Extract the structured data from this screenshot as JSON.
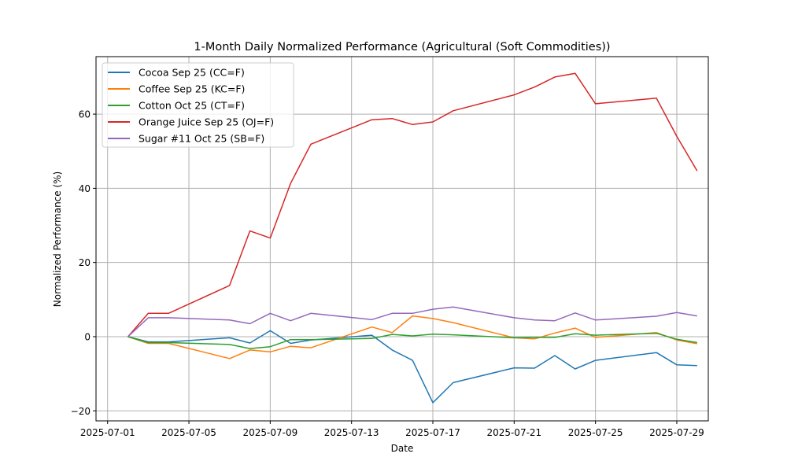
{
  "chart_data": {
    "type": "line",
    "title": "1-Month Daily Normalized Performance (Agricultural (Soft Commodities))",
    "xlabel": "Date",
    "ylabel": "Normalized Performance (%)",
    "grid": true,
    "legend_position": "top-left",
    "xlim": [
      "2025-06-30",
      "2025-07-31"
    ],
    "ylim": [
      -22.7,
      75.5
    ],
    "x_ticks": [
      "2025-07-01",
      "2025-07-05",
      "2025-07-09",
      "2025-07-13",
      "2025-07-17",
      "2025-07-21",
      "2025-07-25",
      "2025-07-29"
    ],
    "y_ticks": [
      -20,
      0,
      20,
      40,
      60
    ],
    "y_tick_labels": [
      "−20",
      "0",
      "20",
      "40",
      "60"
    ],
    "x": [
      "2025-07-02",
      "2025-07-03",
      "2025-07-04",
      "2025-07-07",
      "2025-07-08",
      "2025-07-09",
      "2025-07-10",
      "2025-07-11",
      "2025-07-14",
      "2025-07-15",
      "2025-07-16",
      "2025-07-17",
      "2025-07-18",
      "2025-07-21",
      "2025-07-22",
      "2025-07-23",
      "2025-07-24",
      "2025-07-25",
      "2025-07-28",
      "2025-07-29",
      "2025-07-30"
    ],
    "series": [
      {
        "name": "Cocoa Sep 25 (CC=F)",
        "color": "#1f77b4",
        "values": [
          0,
          -1.4,
          -1.4,
          -0.3,
          -1.7,
          1.6,
          -1.8,
          -0.9,
          0.4,
          -3.6,
          -6.4,
          -17.8,
          -12.4,
          -8.4,
          -8.5,
          -5.1,
          -8.7,
          -6.4,
          -4.3,
          -7.6,
          -7.8
        ]
      },
      {
        "name": "Coffee Sep 25 (KC=F)",
        "color": "#ff7f0e",
        "values": [
          0,
          -1.8,
          -1.8,
          -5.9,
          -3.6,
          -4.1,
          -2.6,
          -3.0,
          2.6,
          1.1,
          5.6,
          4.9,
          3.8,
          -0.3,
          -0.6,
          1.0,
          2.3,
          -0.2,
          1.1,
          -0.9,
          -1.9
        ]
      },
      {
        "name": "Cotton Oct 25 (CT=F)",
        "color": "#2ca02c",
        "values": [
          0,
          -1.6,
          -1.6,
          -2.1,
          -3.2,
          -2.7,
          -0.8,
          -0.8,
          -0.5,
          0.6,
          0.2,
          0.7,
          0.5,
          -0.3,
          -0.2,
          -0.2,
          0.8,
          0.4,
          0.9,
          -0.7,
          -1.6
        ]
      },
      {
        "name": "Orange Juice Sep 25 (OJ=F)",
        "color": "#d62728",
        "values": [
          0,
          6.3,
          6.3,
          13.8,
          28.5,
          26.6,
          41.3,
          51.9,
          58.5,
          58.8,
          57.2,
          57.9,
          60.9,
          65.2,
          67.3,
          70.0,
          71.0,
          62.8,
          64.3,
          54.0,
          44.7
        ]
      },
      {
        "name": "Sugar #11 Oct 25 (SB=F)",
        "color": "#9467bd",
        "values": [
          0,
          5.1,
          5.1,
          4.5,
          3.5,
          6.3,
          4.3,
          6.3,
          4.6,
          6.3,
          6.3,
          7.4,
          8.0,
          5.1,
          4.5,
          4.3,
          6.4,
          4.5,
          5.5,
          6.5,
          5.6
        ]
      }
    ]
  }
}
